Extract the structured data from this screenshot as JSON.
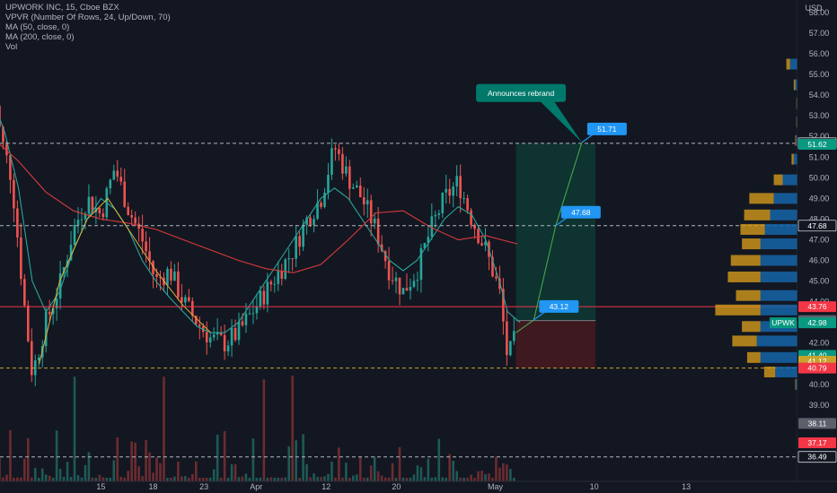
{
  "legend": {
    "symbol": "UPWORK INC, 15, Cboe BZX",
    "vpvr": "VPVR (Number Of Rows, 24, Up/Down, 70)",
    "ma50": "MA (50, close, 0)",
    "ma200": "MA (200, close, 0)",
    "vol": "Vol"
  },
  "chart_data": {
    "type": "candlestick",
    "currency": "USD",
    "ticker": "UPWK",
    "y_range": [
      36.0,
      58.3
    ],
    "y_ticks": [
      39,
      40,
      41,
      42,
      43,
      44,
      45,
      46,
      47,
      48,
      49,
      50,
      51,
      52,
      53,
      54,
      55,
      56,
      57,
      58
    ],
    "x_range": [
      0,
      50
    ],
    "x_ticks": [
      {
        "x": 8,
        "label": "15"
      },
      {
        "x": 11.8,
        "label": "18"
      },
      {
        "x": 15.5,
        "label": "23"
      },
      {
        "x": 19.3,
        "label": "Apr"
      },
      {
        "x": 24.4,
        "label": "12"
      },
      {
        "x": 29.5,
        "label": "20"
      },
      {
        "x": 36.7,
        "label": "May"
      },
      {
        "x": 43.9,
        "label": "10"
      },
      {
        "x": 50.6,
        "label": "13"
      }
    ],
    "price_path": [
      [
        0,
        55.2
      ],
      [
        0.7,
        52
      ],
      [
        1.5,
        50
      ],
      [
        2.4,
        44
      ],
      [
        3,
        40.5
      ],
      [
        4,
        43
      ],
      [
        5,
        44.8
      ],
      [
        6,
        47.5
      ],
      [
        7,
        49
      ],
      [
        8,
        48.2
      ],
      [
        9,
        50.5
      ],
      [
        10,
        48.5
      ],
      [
        11,
        47
      ],
      [
        12,
        45
      ],
      [
        13,
        45.5
      ],
      [
        14,
        44
      ],
      [
        15,
        43
      ],
      [
        16,
        42.2
      ],
      [
        17,
        42
      ],
      [
        18,
        42.5
      ],
      [
        19,
        43.5
      ],
      [
        20,
        44.5
      ],
      [
        21,
        45.5
      ],
      [
        22,
        46.5
      ],
      [
        23,
        48
      ],
      [
        24,
        49
      ],
      [
        25,
        51.5
      ],
      [
        26,
        50
      ],
      [
        27,
        49
      ],
      [
        28,
        47.5
      ],
      [
        29,
        45.5
      ],
      [
        30,
        44.5
      ],
      [
        31,
        45.5
      ],
      [
        32,
        47.5
      ],
      [
        33,
        49
      ],
      [
        34,
        49.8
      ],
      [
        35,
        48
      ],
      [
        36,
        46.5
      ],
      [
        37,
        44.5
      ],
      [
        37.6,
        41.2
      ],
      [
        38.3,
        42.5
      ]
    ],
    "ma50_path": [
      [
        0,
        54
      ],
      [
        1,
        52.2
      ],
      [
        2,
        49.5
      ],
      [
        3,
        45
      ],
      [
        4,
        43.5
      ],
      [
        5,
        44.5
      ],
      [
        6,
        46.5
      ],
      [
        7,
        48
      ],
      [
        8,
        49
      ],
      [
        9,
        48.5
      ],
      [
        10,
        47.5
      ],
      [
        11,
        46
      ],
      [
        12,
        45
      ],
      [
        13,
        44.2
      ],
      [
        14,
        43.5
      ],
      [
        15,
        42.8
      ],
      [
        16,
        42.5
      ],
      [
        17,
        42.5
      ],
      [
        18,
        43
      ],
      [
        19,
        44
      ],
      [
        20,
        45
      ],
      [
        21,
        46
      ],
      [
        22,
        47
      ],
      [
        23,
        48
      ],
      [
        24,
        49
      ],
      [
        25,
        49.5
      ],
      [
        26,
        49
      ],
      [
        27,
        48
      ],
      [
        28,
        47
      ],
      [
        29,
        46
      ],
      [
        30,
        45.5
      ],
      [
        31,
        46
      ],
      [
        32,
        47
      ],
      [
        33,
        48
      ],
      [
        34,
        48.6
      ],
      [
        35,
        48.2
      ],
      [
        36,
        47
      ],
      [
        37,
        45
      ],
      [
        37.6,
        43.5
      ],
      [
        38.5,
        43
      ]
    ],
    "ma200_path": [
      [
        0,
        52
      ],
      [
        2,
        50.8
      ],
      [
        4,
        49.3
      ],
      [
        6,
        48.4
      ],
      [
        8,
        48
      ],
      [
        10,
        47.8
      ],
      [
        12,
        47.5
      ],
      [
        14,
        47
      ],
      [
        16,
        46.5
      ],
      [
        18,
        46
      ],
      [
        20,
        45.6
      ],
      [
        22,
        45.4
      ],
      [
        24,
        45.8
      ],
      [
        26,
        47
      ],
      [
        28,
        48.3
      ],
      [
        30,
        48.4
      ],
      [
        32,
        47.6
      ],
      [
        34,
        47
      ],
      [
        36,
        47.2
      ],
      [
        38.3,
        46.8
      ]
    ],
    "yellow_path": [
      [
        3.5,
        41
      ],
      [
        5,
        45
      ],
      [
        7,
        48
      ],
      [
        8.5,
        49
      ],
      [
        10,
        47.5
      ],
      [
        12,
        45.5
      ],
      [
        14,
        43.8
      ],
      [
        16,
        42.5
      ]
    ],
    "horizontal_levels": [
      {
        "price": 51.67,
        "label": "51.67",
        "style": "dashed",
        "color": "#b2b5be"
      },
      {
        "price": 47.68,
        "label": "47.68",
        "style": "dashed",
        "color": "#b2b5be"
      },
      {
        "price": 43.76,
        "label": "43.76",
        "style": "solid",
        "color": "#f23645"
      },
      {
        "price": 40.79,
        "label": "40.79",
        "style": "dashed",
        "color": "#c8a32c"
      },
      {
        "price": 36.49,
        "label": "36.49",
        "style": "dashed",
        "color": "#b2b5be"
      }
    ],
    "price_tags": [
      {
        "price": 51.67,
        "label": "51.67",
        "bg": "#131722",
        "fg": "#d1d4dc",
        "border": "#d1d4dc"
      },
      {
        "price": 51.62,
        "label": "51.62",
        "bg": "#089981",
        "fg": "#ffffff"
      },
      {
        "price": 47.68,
        "label": "47.68",
        "bg": "#131722",
        "fg": "#d1d4dc",
        "border": "#d1d4dc"
      },
      {
        "price": 43.76,
        "label": "43.76",
        "bg": "#f23645",
        "fg": "#ffffff"
      },
      {
        "price": 43.09,
        "label": "43.09",
        "bg": "#5d606b",
        "fg": "#ffffff"
      },
      {
        "price": 42.98,
        "label": "42.98",
        "bg": "#089981",
        "fg": "#ffffff",
        "ticker": "UPWK"
      },
      {
        "price": 41.4,
        "label": "41.40",
        "bg": "#089981",
        "fg": "#ffffff"
      },
      {
        "price": 41.12,
        "label": "41.12",
        "bg": "#c8a32c",
        "fg": "#ffffff"
      },
      {
        "price": 40.79,
        "label": "40.79",
        "bg": "#f23645",
        "fg": "#ffffff"
      },
      {
        "price": 38.11,
        "label": "38.11",
        "bg": "#5d606b",
        "fg": "#ffffff"
      },
      {
        "price": 37.17,
        "label": "37.17",
        "bg": "#f23645",
        "fg": "#ffffff"
      },
      {
        "price": 36.49,
        "label": "36.49",
        "bg": "#131722",
        "fg": "#d1d4dc",
        "border": "#d1d4dc"
      }
    ],
    "long_position": {
      "x_start": 38.2,
      "x_end": 44.0,
      "entry": 43.09,
      "target": 51.67,
      "stop": 40.79
    },
    "projection": [
      [
        38.2,
        42.5
      ],
      [
        39.5,
        43.12
      ],
      [
        41.1,
        47.68
      ],
      [
        43.0,
        51.71
      ]
    ],
    "callouts": [
      {
        "label": "43.12",
        "x": 39.5,
        "price": 43.12,
        "color": "#2196f3"
      },
      {
        "label": "47.68",
        "x": 41.1,
        "price": 47.68,
        "color": "#2196f3"
      },
      {
        "label": "51.71",
        "x": 43.0,
        "price": 51.71,
        "color": "#2196f3"
      }
    ],
    "annotation": {
      "text": "Announces rebrand",
      "x": 35.3,
      "price": 54.1,
      "color": "#00796b"
    },
    "volume_profile": [
      {
        "price": 55.5,
        "up": 0.1,
        "down": 0.05
      },
      {
        "price": 54.5,
        "up": 0.03,
        "down": 0.02
      },
      {
        "price": 53.6,
        "up": 0.01,
        "down": 0.005
      },
      {
        "price": 52.7,
        "up": 0.01,
        "down": 0.005
      },
      {
        "price": 51.8,
        "up": 0.02,
        "down": 0.01
      },
      {
        "price": 50.9,
        "up": 0.05,
        "down": 0.03
      },
      {
        "price": 49.9,
        "up": 0.2,
        "down": 0.12
      },
      {
        "price": 49.0,
        "up": 0.32,
        "down": 0.33
      },
      {
        "price": 48.2,
        "up": 0.37,
        "down": 0.35
      },
      {
        "price": 47.5,
        "up": 0.44,
        "down": 0.33
      },
      {
        "price": 46.8,
        "up": 0.5,
        "down": 0.25
      },
      {
        "price": 46.0,
        "up": 0.5,
        "down": 0.4
      },
      {
        "price": 45.2,
        "up": 0.5,
        "down": 0.44
      },
      {
        "price": 44.3,
        "up": 0.5,
        "down": 0.33
      },
      {
        "price": 43.6,
        "up": 0.5,
        "down": 0.61
      },
      {
        "price": 42.8,
        "up": 0.5,
        "down": 0.25
      },
      {
        "price": 42.1,
        "up": 0.55,
        "down": 0.33
      },
      {
        "price": 41.3,
        "up": 0.5,
        "down": 0.18
      },
      {
        "price": 40.6,
        "up": 0.3,
        "down": 0.15
      },
      {
        "price": 40.0,
        "up": 0.02,
        "down": 0.01
      }
    ],
    "grid": false
  }
}
